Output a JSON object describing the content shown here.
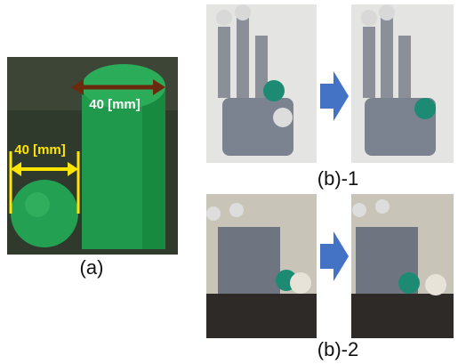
{
  "panel_a": {
    "label": "(a)",
    "cylinder_label": "40 [mm]",
    "ball_label": "40 [mm]"
  },
  "panel_b1": {
    "label": "(b)-1"
  },
  "panel_b2": {
    "label": "(b)-2"
  }
}
